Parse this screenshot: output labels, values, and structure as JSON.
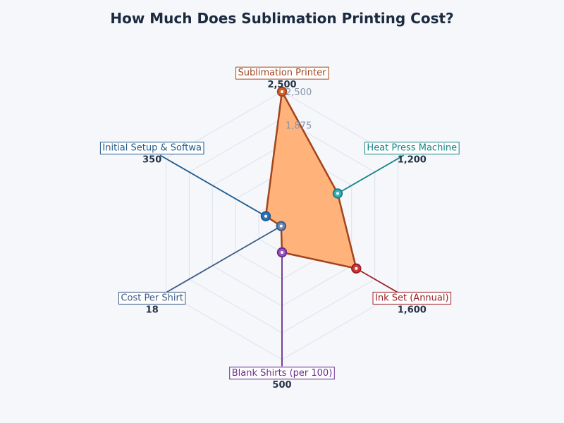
{
  "chart_data": {
    "type": "radar",
    "title": "How Much Does Sublimation Printing Cost?",
    "radial_ticks": [
      "2,500",
      "1,875"
    ],
    "categories": [
      "Sublimation Printer",
      "Heat Press Machine",
      "Ink Set (Annual)",
      "Blank Shirts (per 100)",
      "Cost Per Shirt",
      "Initial Setup & Softwa"
    ],
    "values": [
      2500,
      1200,
      1600,
      500,
      18,
      350
    ],
    "value_labels": [
      "2,500",
      "1,200",
      "1,600",
      "500",
      "18",
      "350"
    ],
    "rmax": 2500,
    "grid": true,
    "colors": {
      "fill": "#ffb27a",
      "outline": "#a2441c",
      "grid": "#dde1ea",
      "title": "#1c2a3f",
      "categories": [
        "#a2441c",
        "#158286",
        "#9b1f24",
        "#6b2c8f",
        "#3b5b86",
        "#1f5b8c"
      ],
      "marker_fills": [
        "#d2622a",
        "#34b1bd",
        "#cf3b3b",
        "#9a56c4",
        "#6e86b8",
        "#3173c2"
      ]
    }
  }
}
